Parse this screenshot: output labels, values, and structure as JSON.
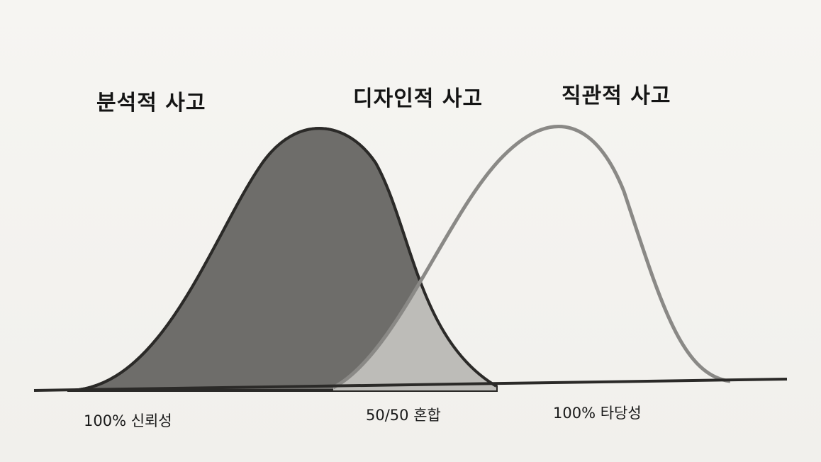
{
  "headings": {
    "analytical": "분석적 사고",
    "design": "디자인적 사고",
    "intuitive": "직관적 사고"
  },
  "captions": {
    "reliability": "100% 신뢰성",
    "mixed": "50/50 혼합",
    "validity": "100% 타당성"
  },
  "colors": {
    "analytical_fill": "#6e6d6a",
    "overlap_fill": "#bdbcb8",
    "intuitive_stroke": "#8a8986",
    "outline": "#2b2a28",
    "baseline": "#2b2a28"
  }
}
